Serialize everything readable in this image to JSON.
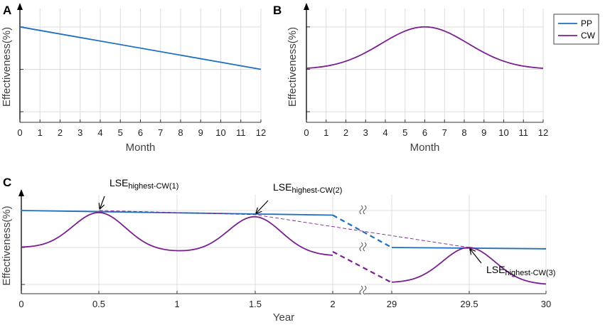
{
  "colors": {
    "pp": "#1f6fbf",
    "cw": "#7b2090",
    "grid": "#dcdcdc",
    "axis": "#333333"
  },
  "legend": {
    "entries": [
      {
        "key": "pp",
        "label": "PP"
      },
      {
        "key": "cw",
        "label": "CW"
      }
    ]
  },
  "chart_data": [
    {
      "panel": "A",
      "type": "line",
      "title": "",
      "xlabel": "Month",
      "ylabel": "Effectiveness(%)",
      "xlim": [
        0,
        12
      ],
      "ylim": [
        0,
        1.1
      ],
      "x_ticks": [
        "0",
        "1",
        "2",
        "3",
        "4",
        "5",
        "6",
        "7",
        "8",
        "9",
        "10",
        "11",
        "12"
      ],
      "y_gridlines": [
        0.1,
        0.5,
        0.9
      ],
      "grid": true,
      "series": [
        {
          "key": "pp",
          "name": "PP",
          "x": [
            0,
            12
          ],
          "y": [
            0.9,
            0.5
          ]
        }
      ]
    },
    {
      "panel": "B",
      "type": "line",
      "title": "",
      "xlabel": "Month",
      "ylabel": "Effectiveness(%)",
      "xlim": [
        0,
        12
      ],
      "ylim": [
        0,
        1.1
      ],
      "x_ticks": [
        "0",
        "1",
        "2",
        "3",
        "4",
        "5",
        "6",
        "7",
        "8",
        "9",
        "10",
        "11",
        "12"
      ],
      "y_gridlines": [
        0.1,
        0.5,
        0.9
      ],
      "grid": true,
      "series": [
        {
          "key": "cw",
          "name": "CW",
          "function": "gaussian",
          "x_range": [
            0,
            12
          ],
          "base": 0.5,
          "amplitude": 0.4,
          "center": 6,
          "sigma": 2.2
        }
      ]
    },
    {
      "panel": "C",
      "type": "line",
      "title": "",
      "xlabel": "Year",
      "ylabel": "Effectiveness(%)",
      "x_ticks": [
        "0",
        "0.5",
        "1",
        "1.5",
        "2",
        "29",
        "29.5",
        "30"
      ],
      "y_gridlines": [
        0.1,
        0.5,
        0.9
      ],
      "ylim": [
        0,
        1.1
      ],
      "grid": true,
      "axis_break_between": [
        2,
        29
      ],
      "segments": [
        {
          "key": "pp",
          "style": "solid",
          "x": [
            0,
            2
          ],
          "y": [
            0.9,
            0.85
          ]
        },
        {
          "key": "pp",
          "style": "dashed",
          "x": [
            2,
            29
          ],
          "y": [
            0.85,
            0.5
          ]
        },
        {
          "key": "pp",
          "style": "solid",
          "x": [
            29,
            30
          ],
          "y": [
            0.5,
            0.485
          ]
        },
        {
          "key": "cw",
          "style": "solid",
          "function": "bumps",
          "x_range": [
            0,
            2
          ],
          "base": 0.5,
          "amplitude": 0.4,
          "centers": [
            0.5,
            1.5
          ],
          "sigma": 0.17,
          "decay_per_year": 0.045
        },
        {
          "key": "cw",
          "style": "dashed",
          "x": [
            2,
            29
          ],
          "y": [
            0.455,
            0.12
          ]
        },
        {
          "key": "cw",
          "style": "solid",
          "function": "bumps",
          "x_range": [
            29,
            30
          ],
          "base": 0.12,
          "amplitude": 0.38,
          "centers": [
            29.5
          ],
          "sigma": 0.17,
          "tail_to": 0.1
        },
        {
          "key": "cw",
          "style": "thin-dashed",
          "x": [
            0.5,
            1.5,
            29.5
          ],
          "y": [
            0.9,
            0.855,
            0.5
          ]
        }
      ],
      "annotations": [
        {
          "main": "LSE",
          "sub": "highest-CW(1)",
          "point": [
            0.5,
            0.9
          ]
        },
        {
          "main": "LSE",
          "sub": "highest-CW(2)",
          "point": [
            1.5,
            0.855
          ]
        },
        {
          "main": "LSE",
          "sub": "highest-CW(3)",
          "point": [
            29.5,
            0.5
          ]
        }
      ]
    }
  ]
}
